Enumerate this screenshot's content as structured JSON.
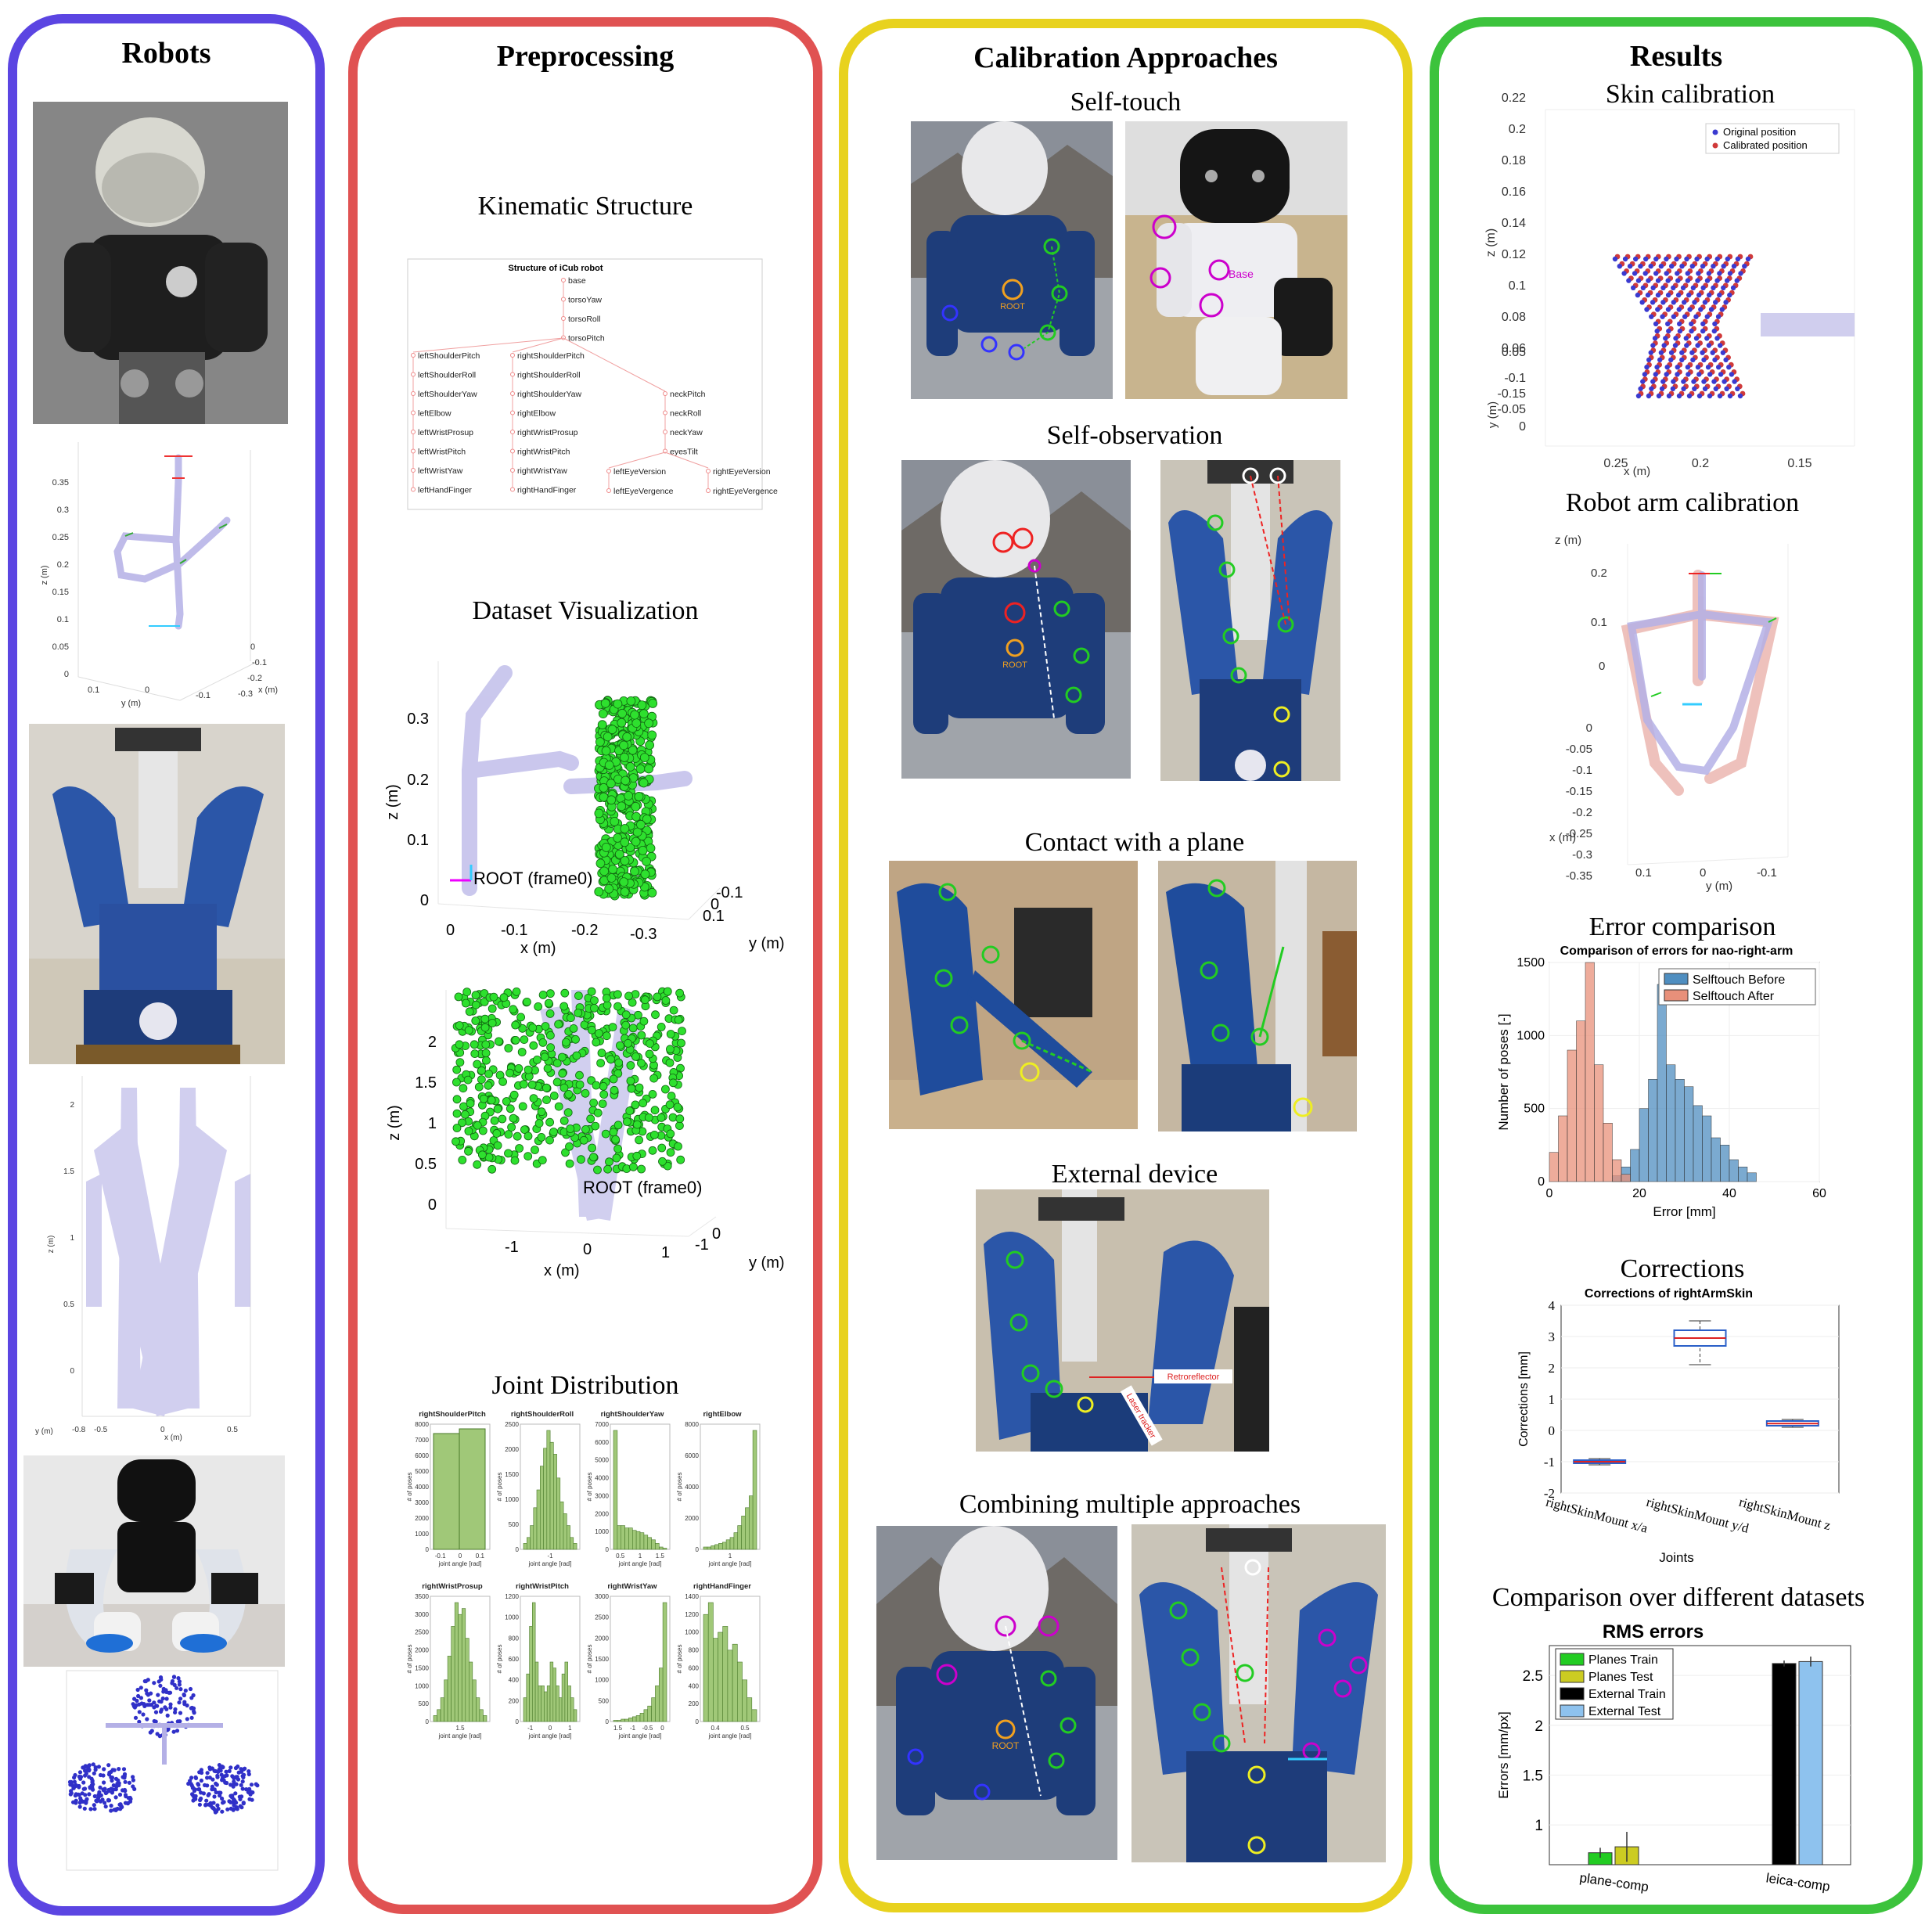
{
  "colors": {
    "robots": "#5b45e2",
    "preprocessing": "#e05252",
    "calibration": "#e8d21e",
    "results": "#3cc33c"
  },
  "panels": {
    "robots": {
      "title": "Robots"
    },
    "preprocessing": {
      "title": "Preprocessing",
      "kinematic": "Kinematic Structure",
      "dataset": "Dataset Visualization",
      "joint": "Joint Distribution"
    },
    "calibration": {
      "title": "Calibration Approaches",
      "self_touch": "Self-touch",
      "self_obs": "Self-observation",
      "plane": "Contact with a plane",
      "external": "External device",
      "combining": "Combining multiple approaches"
    },
    "results": {
      "title": "Results",
      "skin": "Skin calibration",
      "arm": "Robot arm calibration",
      "error": "Error comparison",
      "corrections": "Corrections",
      "datasets": "Comparison over different datasets"
    }
  },
  "photo_labels": {
    "root": "ROOT",
    "base": "Base",
    "retro": "Retroreflector",
    "laser": "Laser tracker"
  },
  "robot_plot1": {
    "zlabel": "z (m)",
    "ylabel": "y (m)",
    "xlabel": "x (m)",
    "zticks": [
      "0.35",
      "0.3",
      "0.25",
      "0.2",
      "0.15",
      "0.1",
      "0.05",
      "0"
    ],
    "yticks": [
      "0.1",
      "0",
      "-0.1"
    ],
    "xticks": [
      "0",
      "-0.1",
      "-0.2",
      "-0.3"
    ]
  },
  "robot_plot2": {
    "zticks": [
      "2",
      "1.5",
      "1",
      "0.5",
      "0"
    ],
    "xticks": [
      "-0.5",
      "0",
      "0.5"
    ],
    "zlabel": "z (m)",
    "ylabel": "y (m)",
    "xlabel": "x (m)",
    "xextra": "-0.8"
  },
  "kin": {
    "title": "Structure of iCub robot",
    "trunk": [
      "base",
      "torsoYaw",
      "torsoRoll",
      "torsoPitch"
    ],
    "left": [
      "leftShoulderPitch",
      "leftShoulderRoll",
      "leftShoulderYaw",
      "leftElbow",
      "leftWristProsup",
      "leftWristPitch",
      "leftWristYaw",
      "leftHandFinger"
    ],
    "right": [
      "rightShoulderPitch",
      "rightShoulderRoll",
      "rightShoulderYaw",
      "rightElbow",
      "rightWristProsup",
      "rightWristPitch",
      "rightWristYaw",
      "rightHandFinger"
    ],
    "neck": [
      "neckPitch",
      "neckRoll",
      "neckYaw",
      "eyesTilt"
    ],
    "eyes": [
      "leftEyeVersion",
      "rightEyeVersion",
      "leftEyeVergence",
      "rightEyeVergence"
    ]
  },
  "dataset1": {
    "zlabel": "z (m)",
    "xlabel": "x (m)",
    "ylabel": "y (m)",
    "root": "ROOT (frame0)",
    "zticks": [
      "0.3",
      "0.2",
      "0.1",
      "0"
    ],
    "xticks": [
      "0",
      "-0.1",
      "-0.2",
      "-0.3"
    ],
    "yticks": [
      "-0.1",
      "0",
      "0.1"
    ]
  },
  "dataset2": {
    "zlabel": "z (m)",
    "xlabel": "x (m)",
    "ylabel": "y (m)",
    "root": "ROOT (frame0)",
    "zticks": [
      "2",
      "1.5",
      "1",
      "0.5",
      "0"
    ],
    "xticks": [
      "-1",
      "0",
      "1"
    ],
    "yticks": [
      "0",
      "-1"
    ]
  },
  "joints": {
    "ylabel": "# of poses",
    "xlabel": "joint angle [rad]",
    "titles": [
      "rightShoulderPitch",
      "rightShoulderRoll",
      "rightShoulderYaw",
      "rightElbow",
      "rightWristProsup",
      "rightWristPitch",
      "rightWristYaw",
      "rightHandFinger"
    ],
    "yticks": [
      [
        "8000",
        "7000",
        "6000",
        "5000",
        "4000",
        "3000",
        "2000",
        "1000",
        "0"
      ],
      [
        "2500",
        "2000",
        "1500",
        "1000",
        "500",
        "0"
      ],
      [
        "7000",
        "6000",
        "5000",
        "4000",
        "3000",
        "2000",
        "1000",
        "0"
      ],
      [
        "8000",
        "6000",
        "4000",
        "2000",
        "0"
      ],
      [
        "3500",
        "3000",
        "2500",
        "2000",
        "1500",
        "1000",
        "500",
        "0"
      ],
      [
        "1200",
        "1000",
        "800",
        "600",
        "400",
        "200",
        "0"
      ],
      [
        "3000",
        "2500",
        "2000",
        "1500",
        "1000",
        "500",
        "0"
      ],
      [
        "1400",
        "1200",
        "1000",
        "800",
        "600",
        "400",
        "200",
        "0"
      ]
    ],
    "xticks": [
      [
        "-0.1",
        "0",
        "0.1"
      ],
      [
        "-1"
      ],
      [
        "0.5",
        "1",
        "1.5"
      ],
      [
        "1"
      ],
      [
        "1.5"
      ],
      [
        "-1",
        "0",
        "1"
      ],
      [
        "1.5",
        "-1",
        "-0.5",
        "0"
      ],
      [
        "0.4",
        "0.5"
      ]
    ]
  },
  "chart_data": [
    {
      "type": "scatter",
      "legend": [
        "Original position",
        "Calibrated position"
      ],
      "zlabel": "z (m)",
      "xlabel": "x (m)",
      "ylabel": "y (m)",
      "zticks": [
        "0.22",
        "0.2",
        "0.18",
        "0.16",
        "0.14",
        "0.12",
        "0.1",
        "0.08",
        "0.06"
      ],
      "yticks": [
        "0.05",
        "-0.15",
        "-0.1",
        "-0.05",
        "0"
      ],
      "xticks": [
        "0.25",
        "0.2",
        "0.15"
      ]
    },
    {
      "type": "line",
      "zlabel": "z (m)",
      "xlabel": "x (m)",
      "ylabel": "y (m)",
      "zticks": [
        "0.2",
        "0.1",
        "0"
      ],
      "xzticks": [
        "0",
        "-0.05",
        "-0.1",
        "-0.15",
        "-0.2",
        "-0.25",
        "-0.3",
        "-0.35"
      ],
      "yticks": [
        "0.1",
        "0",
        "-0.1"
      ]
    },
    {
      "type": "bar",
      "title": "Comparison of errors for nao-right-arm",
      "xlabel": "Error [mm]",
      "ylabel": "Number of poses [-]",
      "ylim": [
        0,
        1500
      ],
      "xlim": [
        0,
        60
      ],
      "xticks": [
        "0",
        "20",
        "40",
        "60"
      ],
      "yticks": [
        "0",
        "500",
        "1000",
        "1500"
      ],
      "series": [
        {
          "name": "Selftouch Before",
          "x": [
            14,
            16,
            18,
            20,
            22,
            24,
            26,
            28,
            30,
            32,
            34,
            36,
            38,
            40,
            42,
            44
          ],
          "values": [
            40,
            100,
            220,
            500,
            700,
            1350,
            800,
            700,
            650,
            520,
            450,
            300,
            250,
            150,
            100,
            60
          ]
        },
        {
          "name": "Selftouch After",
          "x": [
            0,
            2,
            4,
            6,
            8,
            10,
            12,
            14,
            16
          ],
          "values": [
            200,
            450,
            900,
            1100,
            1500,
            800,
            400,
            150,
            50
          ]
        }
      ]
    },
    {
      "type": "box",
      "title": "Corrections of rightArmSkin",
      "ylabel": "Corrections [mm]",
      "xlabel": "Joints",
      "ylim": [
        -2,
        4
      ],
      "yticks": [
        "4",
        "3",
        "2",
        "1",
        "0",
        "-1",
        "-2"
      ],
      "categories": [
        "rightSkinMount x/a",
        "rightSkinMount y/d",
        "rightSkinMount z"
      ],
      "boxes": [
        {
          "q1": -1.05,
          "median": -1,
          "q3": -0.95,
          "min": -1.1,
          "max": -0.9
        },
        {
          "q1": 2.7,
          "median": 2.95,
          "q3": 3.2,
          "min": 2.1,
          "max": 3.5
        },
        {
          "q1": 0.15,
          "median": 0.22,
          "q3": 0.3,
          "min": 0.1,
          "max": 0.35
        }
      ]
    },
    {
      "type": "bar",
      "title": "RMS errors",
      "ylabel": "Errors [mm/px]",
      "categories": [
        "plane-comp",
        "leica-comp"
      ],
      "yticks": [
        "2.5",
        "2",
        "1.5",
        "1"
      ],
      "series": [
        {
          "name": "Planes Train",
          "color": "#22cc22",
          "values": [
            0.72,
            null
          ]
        },
        {
          "name": "Planes Test",
          "color": "#cccc22",
          "values": [
            0.78,
            null
          ]
        },
        {
          "name": "External Train",
          "color": "#000000",
          "values": [
            null,
            2.62
          ]
        },
        {
          "name": "External Test",
          "color": "#8ec2ee",
          "values": [
            null,
            2.64
          ]
        }
      ]
    }
  ]
}
